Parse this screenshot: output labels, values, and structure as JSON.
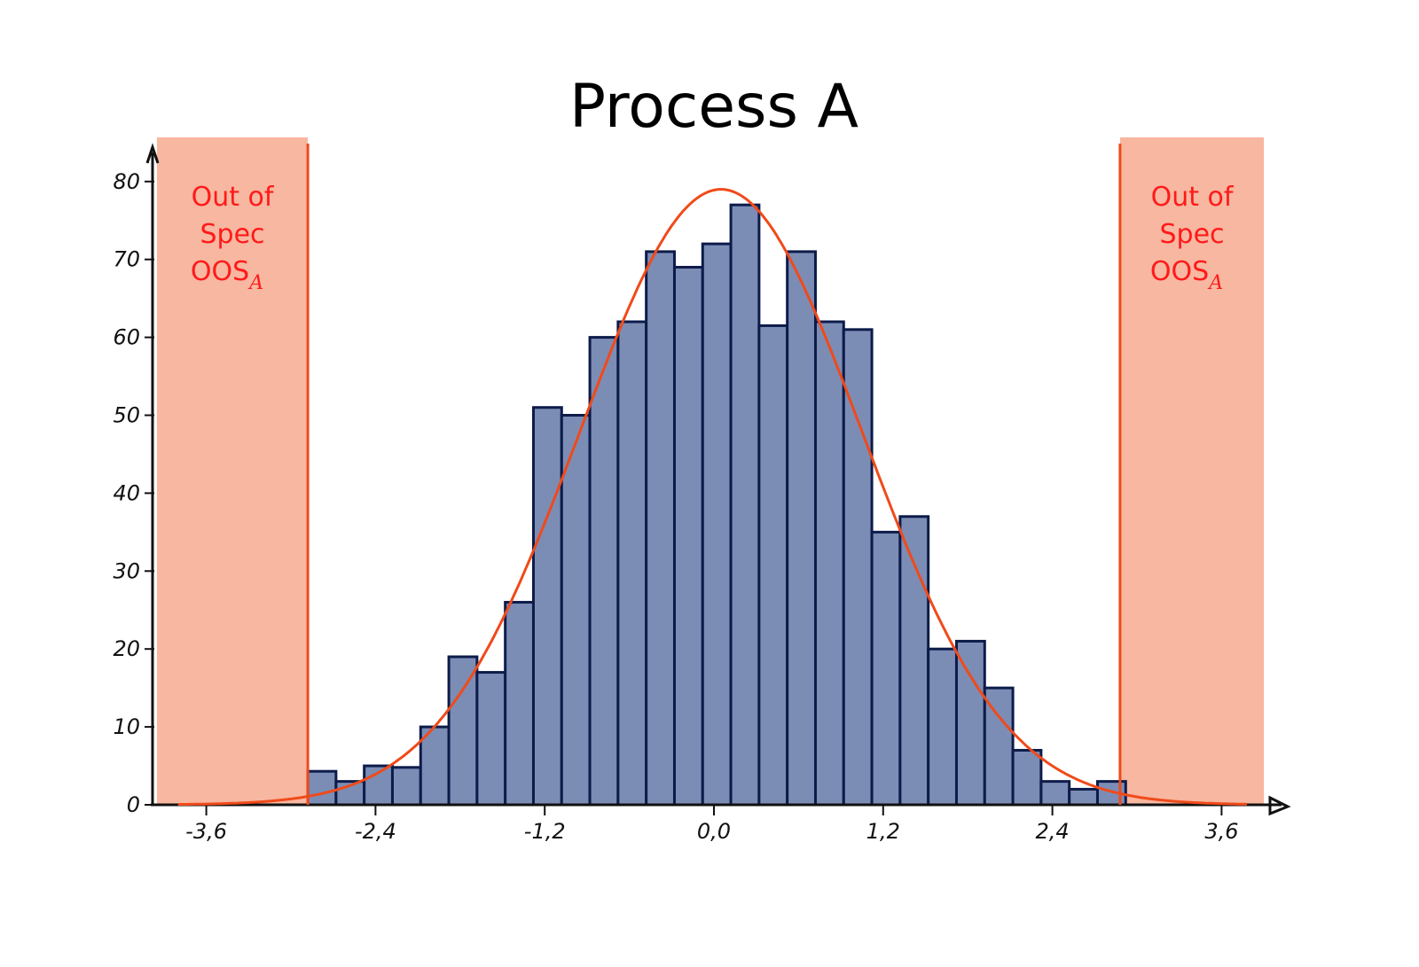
{
  "chart_data": {
    "type": "bar",
    "title": "Process A",
    "xlabel": "",
    "ylabel": "",
    "xlim": [
      -4.0,
      4.1
    ],
    "ylim": [
      0,
      82
    ],
    "x_ticks": [
      -3.6,
      -2.4,
      -1.2,
      0.0,
      1.2,
      2.4,
      3.6
    ],
    "x_tick_labels": [
      "-3,6",
      "-2,4",
      "-1,2",
      "0,0",
      "1,2",
      "2,4",
      "3,6"
    ],
    "y_ticks": [
      0,
      10,
      20,
      30,
      40,
      50,
      60,
      70,
      80
    ],
    "y_tick_labels": [
      "0",
      "10",
      "20",
      "30",
      "40",
      "50",
      "60",
      "70",
      "80"
    ],
    "histogram": {
      "bin_start": -2.88,
      "bin_width": 0.2,
      "counts": [
        4.3,
        3,
        5,
        4.8,
        10,
        19,
        17,
        26,
        51,
        50,
        60,
        62,
        71,
        69,
        72,
        77,
        61.5,
        71,
        62,
        61,
        35,
        37,
        20,
        21,
        15,
        7,
        3,
        2,
        3
      ],
      "color": "#7b8db5",
      "edge_color": "#0d1b4a"
    },
    "fit_curve": {
      "type": "normal",
      "mean": 0.05,
      "sd": 1.0,
      "peak": 79,
      "color": "#f04a1a"
    },
    "spec_limits": {
      "lower": -2.88,
      "upper": 2.88,
      "color": "#f04a1a"
    },
    "oos_regions": [
      {
        "from": -3.95,
        "to": -2.88,
        "label_lines": [
          "Out of",
          "Spec",
          "OOS"
        ],
        "subscript": "A"
      },
      {
        "from": 2.88,
        "to": 3.9,
        "label_lines": [
          "Out of",
          "Spec",
          "OOS"
        ],
        "subscript": "A"
      }
    ],
    "oos_fill": "#f7b7a0",
    "grid": false,
    "legend": "none"
  }
}
